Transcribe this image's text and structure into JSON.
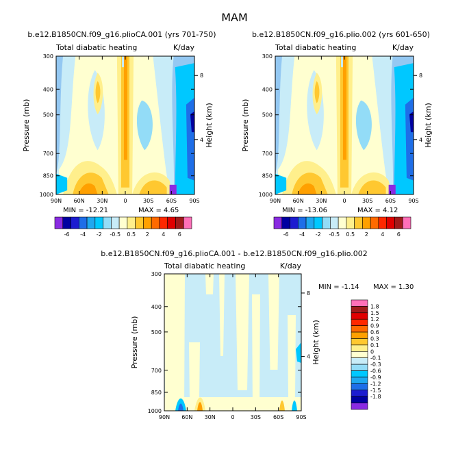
{
  "title": "MAM",
  "colors": {
    "full": [
      "#8a2be2",
      "#0000a0",
      "#1c1cd0",
      "#1e6ee8",
      "#1fa8f0",
      "#00c8ff",
      "#93dcf7",
      "#c8ecf8",
      "#ffffd0",
      "#ffef8c",
      "#ffc830",
      "#ffa000",
      "#ff6a00",
      "#ff2800",
      "#e00000",
      "#a01a1a",
      "#ff70b8"
    ],
    "diff": [
      "#8a2be2",
      "#0000a0",
      "#1c1cd0",
      "#1e6ee8",
      "#1fa8f0",
      "#00c8ff",
      "#93dcf7",
      "#c8ecf8",
      "#ffffd0",
      "#ffef8c",
      "#ffc830",
      "#ffa000",
      "#ff6a00",
      "#ff2800",
      "#e00000",
      "#a01a1a",
      "#ff70b8"
    ],
    "panel_bg": "#94c8f2"
  },
  "panels": [
    {
      "title": "b.e12.B1850CN.f09_g16.plioCA.001 (yrs 701-750)",
      "left_label": "Total diabatic heating",
      "right_label": "K/day",
      "min_text": "MIN = -12.21",
      "max_text": "MAX =  4.65"
    },
    {
      "title": "b.e12.B1850CN.f09_g16.plio.002 (yrs 601-650)",
      "left_label": "Total diabatic heating",
      "right_label": "K/day",
      "min_text": "MIN = -13.06",
      "max_text": "MAX =  4.12"
    },
    {
      "title": "b.e12.B1850CN.f09_g16.plioCA.001 - b.e12.B1850CN.f09_g16.plio.002",
      "left_label": "Total diabatic heating",
      "right_label": "K/day",
      "min_text": "MIN = -1.14",
      "max_text": "MAX =  1.30"
    }
  ],
  "colorbar_full": [
    "-6",
    "-4",
    "-2",
    "-0.5",
    "0.5",
    "2",
    "4",
    "6"
  ],
  "colorbar_diff": [
    "1.8",
    "1.5",
    "1.2",
    "0.9",
    "0.6",
    "0.3",
    "0.1",
    "0",
    "-0.1",
    "-0.3",
    "-0.6",
    "-0.9",
    "-1.2",
    "-1.5",
    "-1.8"
  ],
  "chart_data": [
    {
      "type": "heatmap",
      "title": "b.e12.B1850CN.f09_g16.plioCA.001 (yrs 701-750)",
      "subtitle": "Total diabatic heating",
      "units": "K/day",
      "xlabel": "",
      "ylabel": "Pressure (mb)",
      "y2label": "Height (km)",
      "x_ticks": [
        "90N",
        "60N",
        "30N",
        "0",
        "30S",
        "60S",
        "90S"
      ],
      "y_ticks": [
        "300",
        "400",
        "500",
        "700",
        "850",
        "1000"
      ],
      "y2_ticks": [
        "8",
        "4"
      ],
      "y_scale": "log",
      "ylim": [
        1000,
        300
      ],
      "levels": [
        -6,
        -4,
        -2,
        -0.5,
        0.5,
        2,
        4,
        6
      ],
      "min": -12.21,
      "max": 4.65
    },
    {
      "type": "heatmap",
      "title": "b.e12.B1850CN.f09_g16.plio.002 (yrs 601-650)",
      "subtitle": "Total diabatic heating",
      "units": "K/day",
      "xlabel": "",
      "ylabel": "Pressure (mb)",
      "y2label": "Height (km)",
      "x_ticks": [
        "90N",
        "60N",
        "30N",
        "0",
        "30S",
        "60S",
        "90S"
      ],
      "y_ticks": [
        "300",
        "400",
        "500",
        "700",
        "850",
        "1000"
      ],
      "y2_ticks": [
        "8",
        "4"
      ],
      "y_scale": "log",
      "ylim": [
        1000,
        300
      ],
      "levels": [
        -6,
        -4,
        -2,
        -0.5,
        0.5,
        2,
        4,
        6
      ],
      "min": -13.06,
      "max": 4.12
    },
    {
      "type": "heatmap",
      "title": "b.e12.B1850CN.f09_g16.plioCA.001 - b.e12.B1850CN.f09_g16.plio.002",
      "subtitle": "Total diabatic heating",
      "units": "K/day",
      "xlabel": "",
      "ylabel": "Pressure (mb)",
      "y2label": "Height (km)",
      "x_ticks": [
        "90N",
        "60N",
        "30N",
        "0",
        "30S",
        "60S",
        "90S"
      ],
      "y_ticks": [
        "300",
        "400",
        "500",
        "700",
        "850",
        "1000"
      ],
      "y2_ticks": [
        "8",
        "4"
      ],
      "y_scale": "log",
      "ylim": [
        1000,
        300
      ],
      "levels": [
        -1.8,
        -1.5,
        -1.2,
        -0.9,
        -0.6,
        -0.3,
        -0.1,
        0,
        0.1,
        0.3,
        0.6,
        0.9,
        1.2,
        1.5,
        1.8
      ],
      "min": -1.14,
      "max": 1.3
    }
  ]
}
